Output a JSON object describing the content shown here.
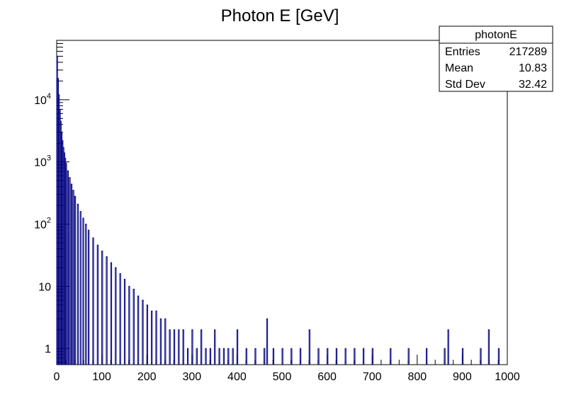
{
  "chart_data": {
    "type": "bar",
    "style": "step histogram",
    "title": "Photon E [GeV]",
    "xlabel": "",
    "ylabel": "",
    "xlim": [
      0,
      1000
    ],
    "ylim": [
      0.55,
      90000
    ],
    "y_scale": "log",
    "x_ticks": [
      0,
      100,
      200,
      300,
      400,
      500,
      600,
      700,
      800,
      900,
      1000
    ],
    "y_ticks": [
      {
        "value": 1,
        "base": "1",
        "exp": ""
      },
      {
        "value": 10,
        "base": "10",
        "exp": ""
      },
      {
        "value": 100,
        "base": "10",
        "exp": "2"
      },
      {
        "value": 1000,
        "base": "10",
        "exp": "3"
      },
      {
        "value": 10000,
        "base": "10",
        "exp": "4"
      }
    ],
    "line_color": "#000080",
    "bin_width": 2,
    "bin_left_edges": [
      0,
      2,
      4,
      6,
      8,
      10,
      12,
      14,
      16,
      18,
      20,
      24,
      28,
      32,
      36,
      40,
      46,
      52,
      58,
      64,
      70,
      80,
      90,
      100,
      110,
      120,
      130,
      140,
      150,
      160,
      170,
      180,
      190,
      200,
      210,
      220,
      230,
      240,
      250,
      260,
      270,
      280,
      290,
      300,
      310,
      320,
      330,
      340,
      350,
      360,
      370,
      380,
      390,
      400,
      420,
      440,
      460,
      466,
      480,
      500,
      520,
      540,
      560,
      580,
      600,
      620,
      640,
      660,
      680,
      700,
      740,
      780,
      820,
      860,
      868,
      900,
      940,
      958,
      980
    ],
    "bin_counts": [
      50000,
      22000,
      12000,
      7000,
      4500,
      3000,
      2200,
      1700,
      1400,
      1150,
      950,
      720,
      560,
      440,
      350,
      280,
      210,
      160,
      125,
      100,
      80,
      60,
      46,
      37,
      30,
      24,
      20,
      16,
      13,
      10,
      9,
      7,
      6,
      5,
      4,
      4,
      3,
      3,
      2,
      2,
      2,
      2,
      1,
      2,
      1,
      2,
      1,
      1,
      2,
      1,
      1,
      1,
      1,
      2,
      1,
      1,
      1,
      3,
      1,
      1,
      1,
      1,
      2,
      1,
      1,
      1,
      1,
      1,
      1,
      1,
      1,
      1,
      1,
      1,
      2,
      1,
      1,
      2,
      1
    ],
    "stats_box": {
      "name": "photonE",
      "rows": [
        {
          "label": "Entries",
          "value": "217289"
        },
        {
          "label": "Mean",
          "value": "10.83"
        },
        {
          "label": "Std Dev",
          "value": "32.42"
        }
      ]
    }
  }
}
